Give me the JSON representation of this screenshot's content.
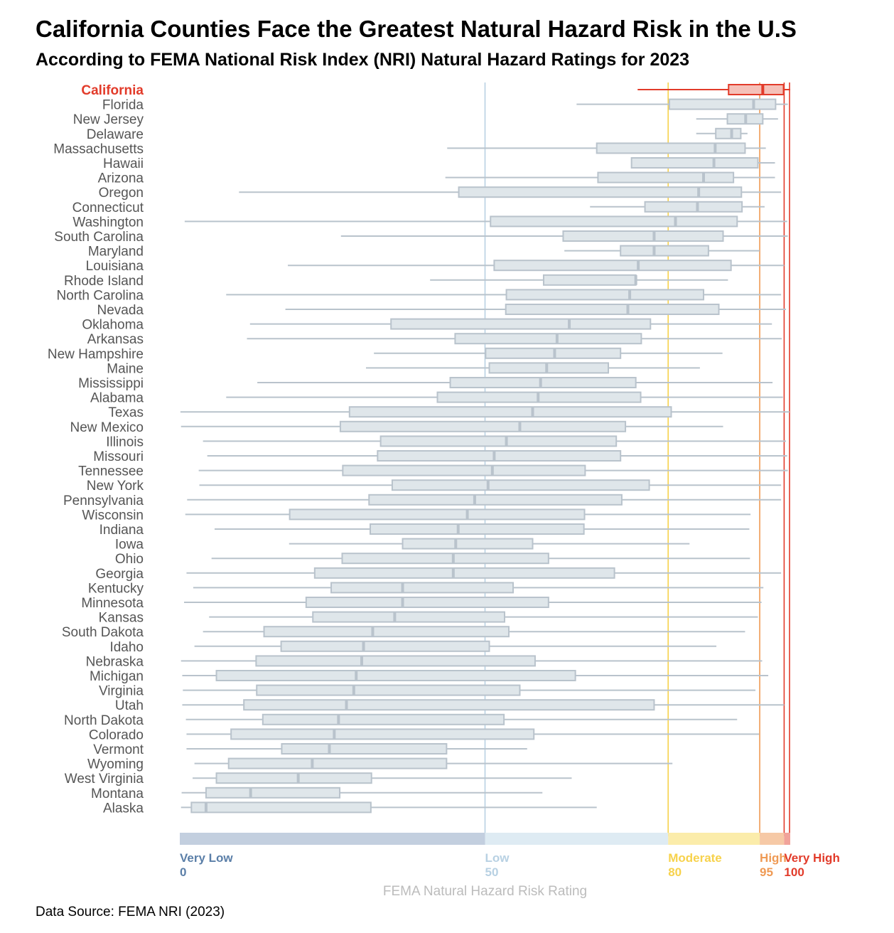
{
  "title": "California Counties Face the Greatest Natural Hazard Risk in the U.S",
  "subtitle": "According to FEMA National Risk Index (NRI) Natural Hazard Ratings for 2023",
  "source": "Data Source: FEMA NRI (2023)",
  "colors": {
    "box_fill": "#dfe6ea",
    "box_stroke": "#b9c3cc",
    "whisker": "#b9c3cc",
    "highlight_fill": "#f5c0b8",
    "highlight_stroke": "#e23b2a",
    "label": "#555555",
    "very_low": "#5b7fa8",
    "low": "#b8d1e3",
    "moderate": "#f7d24c",
    "high": "#ef9a54",
    "very_high": "#e23b2a"
  },
  "chart_data": {
    "type": "boxplot",
    "xlabel": "FEMA Natural Hazard Risk Rating",
    "xlim": [
      0,
      100
    ],
    "highlight": "California",
    "rating_bands": [
      {
        "name": "Very Low",
        "start": 0,
        "end": 50,
        "tick": "0",
        "color": "#5b7fa8",
        "bar_color": "#c3cfdf"
      },
      {
        "name": "Low",
        "start": 50,
        "end": 80,
        "tick": "50",
        "color": "#b8d1e3",
        "bar_color": "#deebf3"
      },
      {
        "name": "Moderate",
        "start": 80,
        "end": 95,
        "tick": "80",
        "color": "#f7d24c",
        "bar_color": "#fbecaa"
      },
      {
        "name": "High",
        "start": 95,
        "end": 99,
        "tick": "95",
        "color": "#ef9a54",
        "bar_color": "#f6c9a6"
      },
      {
        "name": "Very High",
        "start": 99,
        "end": 100,
        "tick": "100",
        "color": "#e23b2a",
        "bar_color": "#f1a39a"
      }
    ],
    "states": [
      {
        "name": "California",
        "min": 75.0,
        "q1": 89.9,
        "median": 95.5,
        "q3": 98.9,
        "max": 100
      },
      {
        "name": "Florida",
        "min": 65.0,
        "q1": 80.2,
        "median": 94.0,
        "q3": 97.6,
        "max": 99.6
      },
      {
        "name": "New Jersey",
        "min": 84.6,
        "q1": 89.7,
        "median": 92.7,
        "q3": 95.5,
        "max": 98.0
      },
      {
        "name": "Delaware",
        "min": 84.6,
        "q1": 87.8,
        "median": 90.4,
        "q3": 91.9,
        "max": 93.0
      },
      {
        "name": "Massachusetts",
        "min": 43.8,
        "q1": 68.3,
        "median": 87.7,
        "q3": 92.6,
        "max": 96.0
      },
      {
        "name": "Hawaii",
        "min": 74.0,
        "q1": 74.0,
        "median": 87.5,
        "q3": 94.7,
        "max": 97.5
      },
      {
        "name": "Arizona",
        "min": 43.5,
        "q1": 68.5,
        "median": 85.8,
        "q3": 90.7,
        "max": 97.5
      },
      {
        "name": "Oregon",
        "min": 9.7,
        "q1": 45.7,
        "median": 85.0,
        "q3": 92.0,
        "max": 98.5
      },
      {
        "name": "Connecticut",
        "min": 67.2,
        "q1": 76.2,
        "median": 84.8,
        "q3": 92.1,
        "max": 95.8
      },
      {
        "name": "Washington",
        "min": 0.8,
        "q1": 50.9,
        "median": 81.2,
        "q3": 91.3,
        "max": 99.5
      },
      {
        "name": "South Carolina",
        "min": 26.4,
        "q1": 62.8,
        "median": 77.7,
        "q3": 89.0,
        "max": 99.6
      },
      {
        "name": "Maryland",
        "min": 63.0,
        "q1": 72.2,
        "median": 77.7,
        "q3": 86.6,
        "max": 95.0
      },
      {
        "name": "Louisiana",
        "min": 17.7,
        "q1": 51.5,
        "median": 75.1,
        "q3": 90.3,
        "max": 99.0
      },
      {
        "name": "Rhode Island",
        "min": 41.0,
        "q1": 59.6,
        "median": 74.7,
        "q3": 74.7,
        "max": 89.8
      },
      {
        "name": "North Carolina",
        "min": 7.6,
        "q1": 53.5,
        "median": 73.7,
        "q3": 85.8,
        "max": 98.5
      },
      {
        "name": "Nevada",
        "min": 17.3,
        "q1": 53.4,
        "median": 73.4,
        "q3": 88.3,
        "max": 99.3
      },
      {
        "name": "Oklahoma",
        "min": 11.5,
        "q1": 34.6,
        "median": 63.8,
        "q3": 77.1,
        "max": 97.0
      },
      {
        "name": "Arkansas",
        "min": 11.0,
        "q1": 45.1,
        "median": 61.8,
        "q3": 75.6,
        "max": 98.6
      },
      {
        "name": "New Hampshire",
        "min": 31.8,
        "q1": 50.1,
        "median": 61.4,
        "q3": 72.2,
        "max": 88.9
      },
      {
        "name": "Maine",
        "min": 30.5,
        "q1": 50.7,
        "median": 60.1,
        "q3": 70.2,
        "max": 85.2
      },
      {
        "name": "Mississippi",
        "min": 12.7,
        "q1": 44.3,
        "median": 59.1,
        "q3": 74.7,
        "max": 97.1
      },
      {
        "name": "Alabama",
        "min": 7.6,
        "q1": 42.2,
        "median": 58.7,
        "q3": 75.5,
        "max": 98.8
      },
      {
        "name": "Texas",
        "min": 0.1,
        "q1": 27.8,
        "median": 57.8,
        "q3": 80.5,
        "max": 99.9
      },
      {
        "name": "New Mexico",
        "min": 0.2,
        "q1": 26.3,
        "median": 55.7,
        "q3": 73.0,
        "max": 89.0
      },
      {
        "name": "Illinois",
        "min": 3.8,
        "q1": 32.9,
        "median": 53.5,
        "q3": 71.5,
        "max": 99.3
      },
      {
        "name": "Missouri",
        "min": 4.5,
        "q1": 32.4,
        "median": 51.5,
        "q3": 72.2,
        "max": 99.5
      },
      {
        "name": "Tennessee",
        "min": 3.1,
        "q1": 26.7,
        "median": 51.2,
        "q3": 66.4,
        "max": 99.6
      },
      {
        "name": "New York",
        "min": 3.2,
        "q1": 34.8,
        "median": 50.5,
        "q3": 76.9,
        "max": 98.5
      },
      {
        "name": "Pennsylvania",
        "min": 1.2,
        "q1": 31.0,
        "median": 48.3,
        "q3": 72.4,
        "max": 98.5
      },
      {
        "name": "Wisconsin",
        "min": 0.9,
        "q1": 18.0,
        "median": 47.1,
        "q3": 66.3,
        "max": 93.5
      },
      {
        "name": "Indiana",
        "min": 5.7,
        "q1": 31.2,
        "median": 45.6,
        "q3": 66.2,
        "max": 93.3
      },
      {
        "name": "Iowa",
        "min": 17.9,
        "q1": 36.5,
        "median": 45.2,
        "q3": 57.8,
        "max": 83.5
      },
      {
        "name": "Ohio",
        "min": 5.2,
        "q1": 26.6,
        "median": 44.8,
        "q3": 60.4,
        "max": 93.4
      },
      {
        "name": "Georgia",
        "min": 1.1,
        "q1": 22.1,
        "median": 44.8,
        "q3": 71.2,
        "max": 98.5
      },
      {
        "name": "Kentucky",
        "min": 2.2,
        "q1": 24.8,
        "median": 36.5,
        "q3": 54.6,
        "max": 95.6
      },
      {
        "name": "Minnesota",
        "min": 0.7,
        "q1": 20.7,
        "median": 36.5,
        "q3": 60.4,
        "max": 95.3
      },
      {
        "name": "Kansas",
        "min": 4.8,
        "q1": 21.8,
        "median": 35.2,
        "q3": 53.2,
        "max": 94.7
      },
      {
        "name": "South Dakota",
        "min": 3.8,
        "q1": 13.8,
        "median": 31.6,
        "q3": 53.9,
        "max": 92.6
      },
      {
        "name": "Idaho",
        "min": 2.4,
        "q1": 16.6,
        "median": 30.1,
        "q3": 50.7,
        "max": 87.9
      },
      {
        "name": "Nebraska",
        "min": 0.2,
        "q1": 12.5,
        "median": 29.8,
        "q3": 58.2,
        "max": 95.4
      },
      {
        "name": "Michigan",
        "min": 0.4,
        "q1": 6.0,
        "median": 28.9,
        "q3": 64.8,
        "max": 96.4
      },
      {
        "name": "Virginia",
        "min": 0.5,
        "q1": 12.6,
        "median": 28.5,
        "q3": 55.7,
        "max": 94.3
      },
      {
        "name": "Utah",
        "min": 0.4,
        "q1": 10.5,
        "median": 27.3,
        "q3": 77.7,
        "max": 99.0
      },
      {
        "name": "North Dakota",
        "min": 1.0,
        "q1": 13.6,
        "median": 26.0,
        "q3": 53.1,
        "max": 91.3
      },
      {
        "name": "Colorado",
        "min": 1.1,
        "q1": 8.4,
        "median": 25.3,
        "q3": 58.0,
        "max": 94.9
      },
      {
        "name": "Vermont",
        "min": 1.1,
        "q1": 16.7,
        "median": 24.5,
        "q3": 43.7,
        "max": 56.9
      },
      {
        "name": "Wyoming",
        "min": 2.4,
        "q1": 8.0,
        "median": 21.7,
        "q3": 43.7,
        "max": 80.7
      },
      {
        "name": "West Virginia",
        "min": 2.1,
        "q1": 6.0,
        "median": 19.4,
        "q3": 31.4,
        "max": 64.2
      },
      {
        "name": "Montana",
        "min": 0.3,
        "q1": 4.3,
        "median": 11.6,
        "q3": 26.2,
        "max": 59.4
      },
      {
        "name": "Alaska",
        "min": 0.2,
        "q1": 1.9,
        "median": 4.3,
        "q3": 31.3,
        "max": 68.3
      }
    ]
  }
}
